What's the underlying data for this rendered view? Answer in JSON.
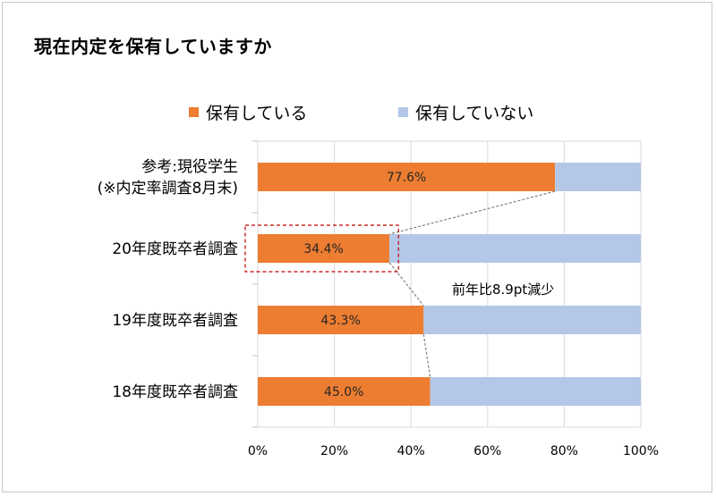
{
  "title": "現在内定を保有していますか",
  "annotation": "前年比8.9pt減少",
  "colors": {
    "have": "#ed7d31",
    "not_have": "#b4c7e7",
    "callout": "#c00000",
    "connector": "#7f7f7f"
  },
  "chart_data": {
    "type": "bar",
    "orientation": "horizontal",
    "stacked": true,
    "title": "現在内定を保有していますか",
    "categories": [
      [
        "参考:現役学生",
        "(※内定率調査8月末)"
      ],
      [
        "20年度既卒者調査"
      ],
      [
        "19年度既卒者調査"
      ],
      [
        "18年度既卒者調査"
      ]
    ],
    "series": [
      {
        "name": "保有している",
        "values": [
          77.6,
          34.4,
          43.3,
          45.0
        ],
        "labels": [
          "77.6%",
          "34.4%",
          "43.3%",
          "45.0%"
        ]
      },
      {
        "name": "保有していない",
        "values": [
          22.4,
          65.6,
          56.7,
          55.0
        ]
      }
    ],
    "xlim": [
      0,
      100
    ],
    "xticks": [
      "0%",
      "20%",
      "40%",
      "60%",
      "80%",
      "100%"
    ],
    "legend": "top",
    "grid": true,
    "highlight_category": 1
  }
}
